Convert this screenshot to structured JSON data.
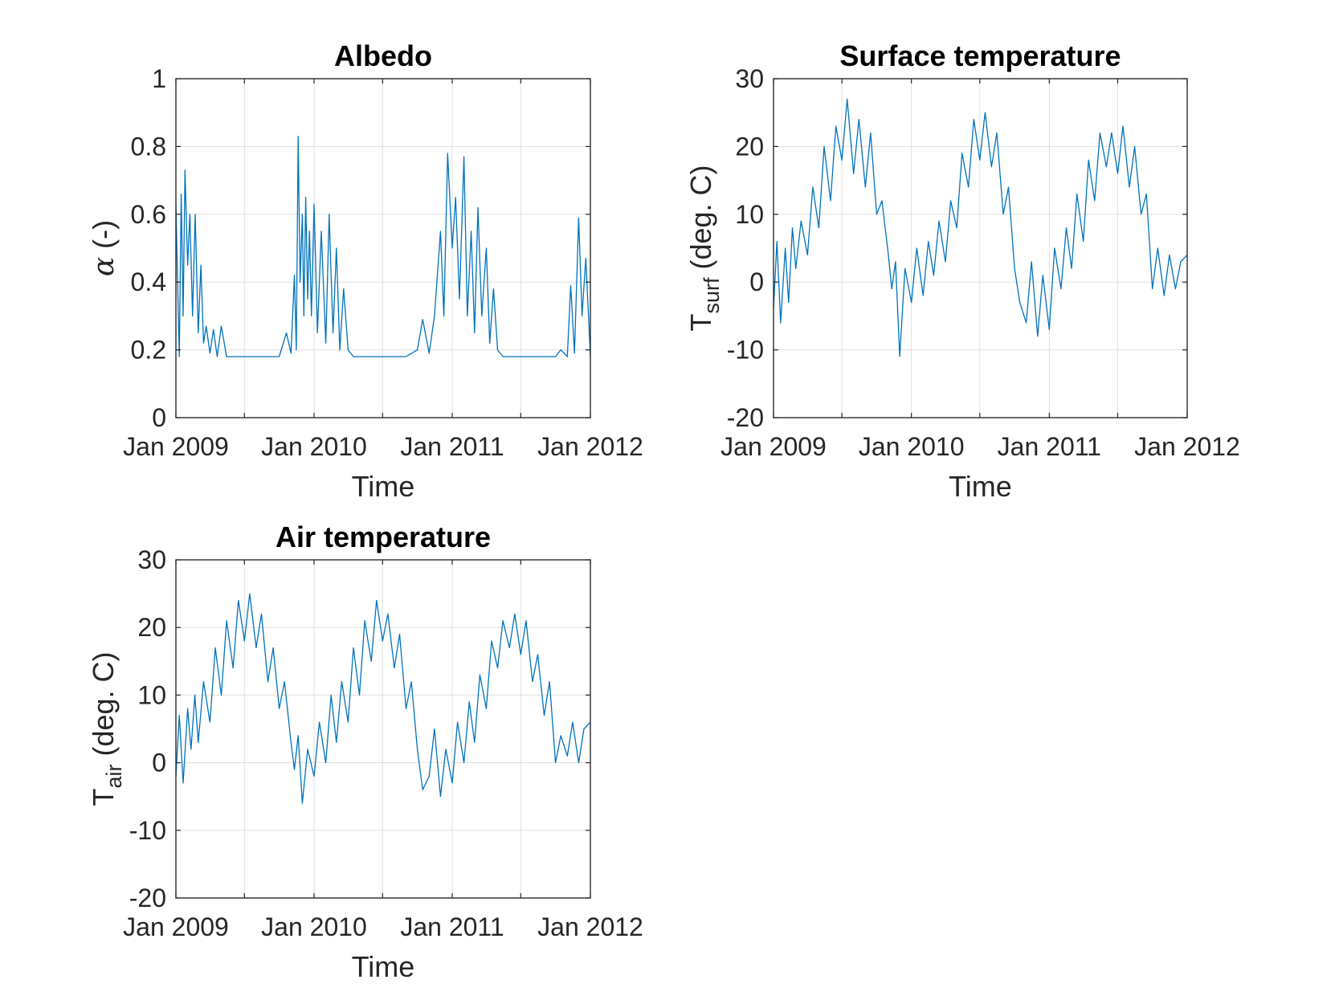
{
  "chart_data": [
    {
      "type": "line",
      "title": "Albedo",
      "xlabel": "Time",
      "ylabel": "α (-)",
      "ylim": [
        0,
        1
      ],
      "yticks": [
        0,
        0.2,
        0.4,
        0.6,
        0.8,
        1
      ],
      "ytick_labels": [
        "0",
        "0.2",
        "0.4",
        "0.6",
        "0.8",
        "1"
      ],
      "xlim": [
        "2009-01-01",
        "2012-01-01"
      ],
      "xticks": [
        "2009-01-01",
        "2009-07-01",
        "2010-01-01",
        "2010-07-01",
        "2011-01-01",
        "2011-07-01",
        "2012-01-01"
      ],
      "xtick_labels": [
        "Jan 2009",
        "",
        "Jan 2010",
        "",
        "Jan 2011",
        "",
        "Jan 2012"
      ],
      "grid": true,
      "color": "#0072BD",
      "series": [
        {
          "x": [
            "2009-01-01",
            "2009-01-05",
            "2009-01-10",
            "2009-01-15",
            "2009-01-20",
            "2009-01-25",
            "2009-02-01",
            "2009-02-07",
            "2009-02-14",
            "2009-02-21",
            "2009-03-01",
            "2009-03-08",
            "2009-03-15",
            "2009-03-22",
            "2009-04-01",
            "2009-04-10",
            "2009-04-20",
            "2009-05-01",
            "2009-05-15",
            "2009-06-01",
            "2009-07-01",
            "2009-08-01",
            "2009-09-01",
            "2009-10-01",
            "2009-10-20",
            "2009-11-01",
            "2009-11-10",
            "2009-11-15",
            "2009-11-20",
            "2009-11-25",
            "2009-12-01",
            "2009-12-05",
            "2009-12-10",
            "2009-12-15",
            "2009-12-20",
            "2009-12-25",
            "2010-01-01",
            "2010-01-10",
            "2010-01-20",
            "2010-02-01",
            "2010-02-10",
            "2010-02-20",
            "2010-03-01",
            "2010-03-10",
            "2010-03-20",
            "2010-04-01",
            "2010-04-15",
            "2010-05-01",
            "2010-06-01",
            "2010-07-01",
            "2010-08-01",
            "2010-09-01",
            "2010-10-01",
            "2010-10-15",
            "2010-11-01",
            "2010-11-15",
            "2010-12-01",
            "2010-12-10",
            "2010-12-20",
            "2011-01-01",
            "2011-01-10",
            "2011-01-20",
            "2011-02-01",
            "2011-02-10",
            "2011-02-20",
            "2011-03-01",
            "2011-03-10",
            "2011-03-20",
            "2011-04-01",
            "2011-04-10",
            "2011-04-20",
            "2011-05-01",
            "2011-05-15",
            "2011-06-01",
            "2011-07-01",
            "2011-08-01",
            "2011-09-01",
            "2011-10-01",
            "2011-10-15",
            "2011-11-01",
            "2011-11-10",
            "2011-11-20",
            "2011-12-01",
            "2011-12-10",
            "2011-12-20",
            "2012-01-01"
          ],
          "y": [
            0.63,
            0.42,
            0.18,
            0.66,
            0.3,
            0.73,
            0.45,
            0.6,
            0.3,
            0.6,
            0.25,
            0.45,
            0.22,
            0.27,
            0.19,
            0.26,
            0.18,
            0.27,
            0.18,
            0.18,
            0.18,
            0.18,
            0.18,
            0.18,
            0.25,
            0.19,
            0.42,
            0.2,
            0.83,
            0.4,
            0.6,
            0.3,
            0.65,
            0.35,
            0.55,
            0.3,
            0.63,
            0.25,
            0.55,
            0.22,
            0.6,
            0.25,
            0.5,
            0.2,
            0.38,
            0.2,
            0.18,
            0.18,
            0.18,
            0.18,
            0.18,
            0.18,
            0.2,
            0.29,
            0.19,
            0.3,
            0.55,
            0.3,
            0.78,
            0.5,
            0.65,
            0.35,
            0.77,
            0.3,
            0.55,
            0.25,
            0.62,
            0.3,
            0.5,
            0.22,
            0.38,
            0.2,
            0.18,
            0.18,
            0.18,
            0.18,
            0.18,
            0.18,
            0.2,
            0.18,
            0.39,
            0.19,
            0.59,
            0.3,
            0.47,
            0.18
          ]
        }
      ]
    },
    {
      "type": "line",
      "title": "Surface temperature",
      "xlabel": "Time",
      "ylabel": "T_surf (deg. C)",
      "ylabel_main": "T",
      "ylabel_sub": "surf",
      "ylabel_rest": " (deg. C)",
      "ylim": [
        -20,
        30
      ],
      "yticks": [
        -20,
        -10,
        0,
        10,
        20,
        30
      ],
      "ytick_labels": [
        "-20",
        "-10",
        "0",
        "10",
        "20",
        "30"
      ],
      "xlim": [
        "2009-01-01",
        "2012-01-01"
      ],
      "xticks": [
        "2009-01-01",
        "2009-07-01",
        "2010-01-01",
        "2010-07-01",
        "2011-01-01",
        "2011-07-01",
        "2012-01-01"
      ],
      "xtick_labels": [
        "Jan 2009",
        "",
        "Jan 2010",
        "",
        "Jan 2011",
        "",
        "Jan 2012"
      ],
      "grid": true,
      "color": "#0072BD",
      "series": [
        {
          "x": [
            "2009-01-01",
            "2009-01-10",
            "2009-01-20",
            "2009-02-01",
            "2009-02-10",
            "2009-02-20",
            "2009-03-01",
            "2009-03-15",
            "2009-04-01",
            "2009-04-15",
            "2009-05-01",
            "2009-05-15",
            "2009-06-01",
            "2009-06-15",
            "2009-07-01",
            "2009-07-15",
            "2009-08-01",
            "2009-08-15",
            "2009-09-01",
            "2009-09-15",
            "2009-10-01",
            "2009-10-15",
            "2009-11-01",
            "2009-11-10",
            "2009-11-20",
            "2009-12-01",
            "2009-12-15",
            "2010-01-01",
            "2010-01-15",
            "2010-02-01",
            "2010-02-15",
            "2010-03-01",
            "2010-03-15",
            "2010-04-01",
            "2010-04-15",
            "2010-05-01",
            "2010-05-15",
            "2010-06-01",
            "2010-06-15",
            "2010-07-01",
            "2010-07-15",
            "2010-08-01",
            "2010-08-15",
            "2010-09-01",
            "2010-09-15",
            "2010-10-01",
            "2010-10-15",
            "2010-11-01",
            "2010-11-15",
            "2010-12-01",
            "2010-12-15",
            "2011-01-01",
            "2011-01-15",
            "2011-02-01",
            "2011-02-15",
            "2011-03-01",
            "2011-03-15",
            "2011-04-01",
            "2011-04-15",
            "2011-05-01",
            "2011-05-15",
            "2011-06-01",
            "2011-06-15",
            "2011-07-01",
            "2011-07-15",
            "2011-08-01",
            "2011-08-15",
            "2011-09-01",
            "2011-09-15",
            "2011-10-01",
            "2011-10-15",
            "2011-11-01",
            "2011-11-15",
            "2011-12-01",
            "2011-12-15",
            "2012-01-01"
          ],
          "y": [
            -4,
            6,
            -6,
            5,
            -3,
            8,
            2,
            9,
            4,
            14,
            8,
            20,
            12,
            23,
            18,
            27,
            16,
            24,
            14,
            22,
            10,
            12,
            4,
            -1,
            3,
            -11,
            2,
            -3,
            5,
            -2,
            6,
            1,
            9,
            3,
            12,
            8,
            19,
            14,
            24,
            18,
            25,
            17,
            22,
            10,
            14,
            2,
            -3,
            -6,
            3,
            -8,
            1,
            -7,
            5,
            -1,
            8,
            2,
            13,
            6,
            18,
            12,
            22,
            17,
            22,
            16,
            23,
            14,
            20,
            10,
            13,
            -1,
            5,
            -2,
            4,
            -1,
            3,
            4
          ]
        }
      ]
    },
    {
      "type": "line",
      "title": "Air temperature",
      "xlabel": "Time",
      "ylabel": "T_air (deg. C)",
      "ylabel_main": "T",
      "ylabel_sub": "air",
      "ylabel_rest": " (deg. C)",
      "ylim": [
        -20,
        30
      ],
      "yticks": [
        -20,
        -10,
        0,
        10,
        20,
        30
      ],
      "ytick_labels": [
        "-20",
        "-10",
        "0",
        "10",
        "20",
        "30"
      ],
      "xlim": [
        "2009-01-01",
        "2012-01-01"
      ],
      "xticks": [
        "2009-01-01",
        "2009-07-01",
        "2010-01-01",
        "2010-07-01",
        "2011-01-01",
        "2011-07-01",
        "2012-01-01"
      ],
      "xtick_labels": [
        "Jan 2009",
        "",
        "Jan 2010",
        "",
        "Jan 2011",
        "",
        "Jan 2012"
      ],
      "grid": true,
      "color": "#0072BD",
      "series": [
        {
          "x": [
            "2009-01-01",
            "2009-01-10",
            "2009-01-20",
            "2009-02-01",
            "2009-02-10",
            "2009-02-20",
            "2009-03-01",
            "2009-03-15",
            "2009-04-01",
            "2009-04-15",
            "2009-05-01",
            "2009-05-15",
            "2009-06-01",
            "2009-06-15",
            "2009-07-01",
            "2009-07-15",
            "2009-08-01",
            "2009-08-15",
            "2009-09-01",
            "2009-09-15",
            "2009-10-01",
            "2009-10-15",
            "2009-11-01",
            "2009-11-10",
            "2009-11-20",
            "2009-12-01",
            "2009-12-15",
            "2010-01-01",
            "2010-01-15",
            "2010-02-01",
            "2010-02-15",
            "2010-03-01",
            "2010-03-15",
            "2010-04-01",
            "2010-04-15",
            "2010-05-01",
            "2010-05-15",
            "2010-06-01",
            "2010-06-15",
            "2010-07-01",
            "2010-07-15",
            "2010-08-01",
            "2010-08-15",
            "2010-09-01",
            "2010-09-15",
            "2010-10-01",
            "2010-10-15",
            "2010-11-01",
            "2010-11-15",
            "2010-12-01",
            "2010-12-15",
            "2011-01-01",
            "2011-01-15",
            "2011-02-01",
            "2011-02-15",
            "2011-03-01",
            "2011-03-15",
            "2011-04-01",
            "2011-04-15",
            "2011-05-01",
            "2011-05-15",
            "2011-06-01",
            "2011-06-15",
            "2011-07-01",
            "2011-07-15",
            "2011-08-01",
            "2011-08-15",
            "2011-09-01",
            "2011-09-15",
            "2011-10-01",
            "2011-10-15",
            "2011-11-01",
            "2011-11-15",
            "2011-12-01",
            "2011-12-15",
            "2012-01-01"
          ],
          "y": [
            -2,
            7,
            -3,
            8,
            2,
            10,
            3,
            12,
            6,
            17,
            10,
            21,
            14,
            24,
            18,
            25,
            17,
            22,
            12,
            17,
            8,
            12,
            3,
            -1,
            4,
            -6,
            2,
            -2,
            6,
            0,
            10,
            3,
            12,
            6,
            17,
            10,
            21,
            15,
            24,
            18,
            22,
            14,
            19,
            8,
            12,
            2,
            -4,
            -2,
            5,
            -5,
            2,
            -3,
            6,
            0,
            9,
            3,
            13,
            8,
            18,
            14,
            21,
            17,
            22,
            16,
            21,
            12,
            16,
            7,
            12,
            0,
            4,
            1,
            6,
            0,
            5,
            6
          ]
        }
      ]
    }
  ]
}
